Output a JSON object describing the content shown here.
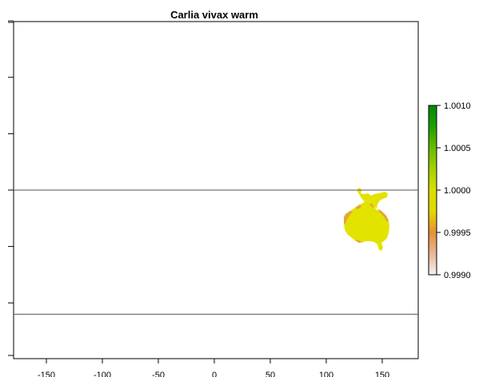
{
  "title": "Carlia vivax warm",
  "x_axis": {
    "tick_labels": [
      "-150",
      "-100",
      "-50",
      "0",
      "50",
      "100",
      "150"
    ],
    "tick_values": [
      -150,
      -100,
      -50,
      0,
      50,
      100,
      150
    ],
    "xlim": [
      -180,
      180
    ]
  },
  "y_axis": {
    "tick_values": [
      -100,
      -50,
      0,
      50,
      100,
      150
    ],
    "ylim": [
      -150,
      150
    ]
  },
  "reference_lines_y": [
    0,
    -110
  ],
  "legend": {
    "tick_labels": [
      "1.0010",
      "1.0005",
      "1.0000",
      "0.9995",
      "0.9990"
    ],
    "range": [
      0.999,
      1.001
    ],
    "colors": [
      "#f2f2f2",
      "#ebb494",
      "#e59135",
      "#e3d800",
      "#d8e000",
      "#a4d100",
      "#68bb00",
      "#22a000",
      "#008a00"
    ]
  },
  "raster": {
    "colors": {
      "main": "#e3e300",
      "edge": "#e5a63a",
      "dark_edge": "#e08a2a"
    }
  }
}
